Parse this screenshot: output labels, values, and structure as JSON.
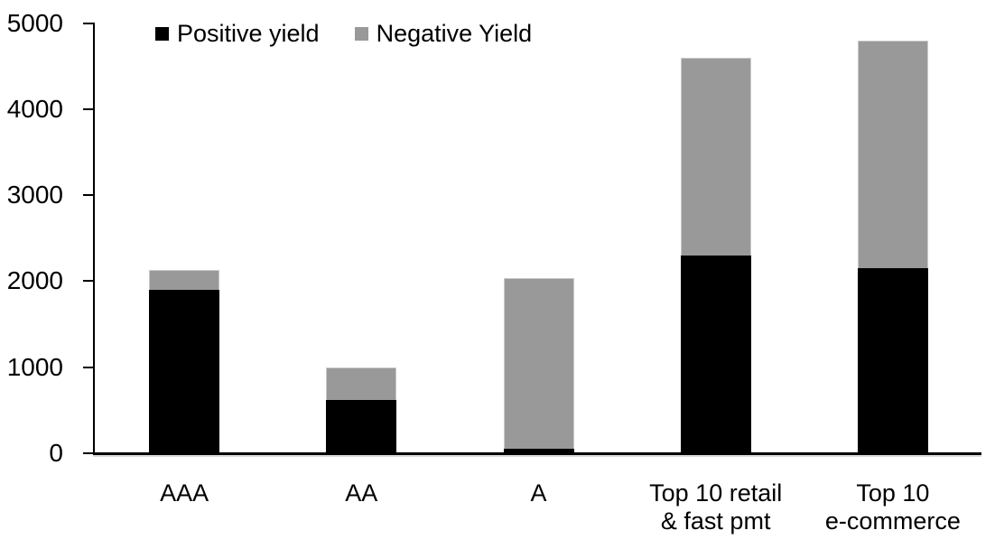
{
  "chart_data": {
    "type": "bar",
    "stacked": true,
    "title": "",
    "xlabel": "",
    "ylabel": "",
    "categories": [
      "AAA",
      "AA",
      "A",
      "Top 10 retail & fast pmt",
      "Top 10 e-commerce"
    ],
    "category_label_lines": [
      [
        "AAA"
      ],
      [
        "AA"
      ],
      [
        "A"
      ],
      [
        "Top 10 retail",
        "& fast pmt"
      ],
      [
        "Top 10",
        "e-commerce"
      ]
    ],
    "series": [
      {
        "name": "Positive yield",
        "color": "#000000",
        "values": [
          1900,
          620,
          50,
          2300,
          2150
        ]
      },
      {
        "name": "Negative Yield",
        "color": "#999999",
        "values": [
          230,
          380,
          1990,
          2300,
          2650
        ]
      }
    ],
    "stack_totals": [
      2130,
      1000,
      2040,
      4600,
      4800
    ],
    "ylim": [
      0,
      5000
    ],
    "yticks": [
      0,
      1000,
      2000,
      3000,
      4000,
      5000
    ],
    "ytick_labels": [
      "0",
      "1000",
      "2000",
      "3000",
      "4000",
      "5000"
    ],
    "grid": false,
    "legend_position": "top-left-inside"
  },
  "colors": {
    "positive_series": "#000000",
    "negative_series": "#999999",
    "axis": "#000000",
    "background": "#ffffff",
    "bar_outline": "#c9c9c9"
  }
}
